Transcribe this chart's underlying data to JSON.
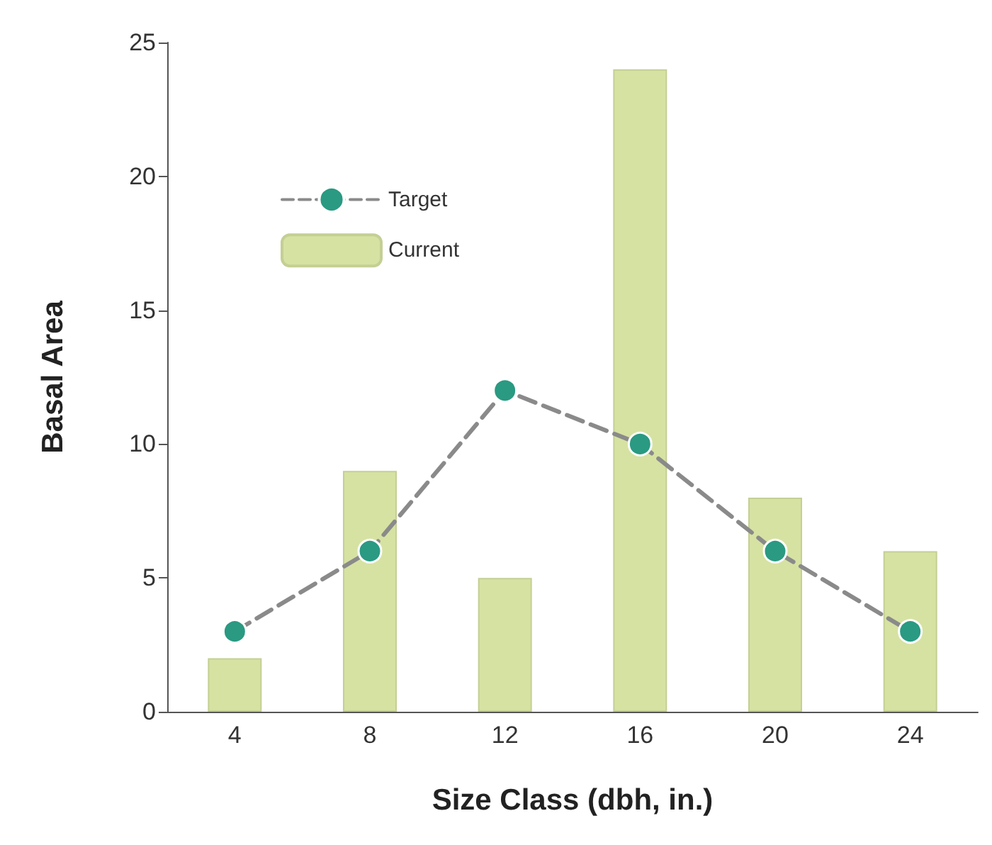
{
  "chart_data": {
    "type": "bar",
    "xlabel": "Size Class (dbh, in.)",
    "ylabel": "Basal Area",
    "categories": [
      "4",
      "8",
      "12",
      "16",
      "20",
      "24"
    ],
    "series": [
      {
        "name": "Target",
        "type": "line",
        "color": "#2a9a82",
        "values": [
          3,
          6,
          12,
          10,
          6,
          3
        ],
        "marker": "circle",
        "line_style": "dashed"
      },
      {
        "name": "Current",
        "color": "#d6e2a2",
        "values": [
          2,
          9,
          5,
          24,
          8,
          6
        ]
      }
    ],
    "ylim": [
      0,
      25
    ],
    "yticks": [
      0,
      5,
      10,
      15,
      20,
      25
    ],
    "grid": false,
    "legend": "top left"
  }
}
